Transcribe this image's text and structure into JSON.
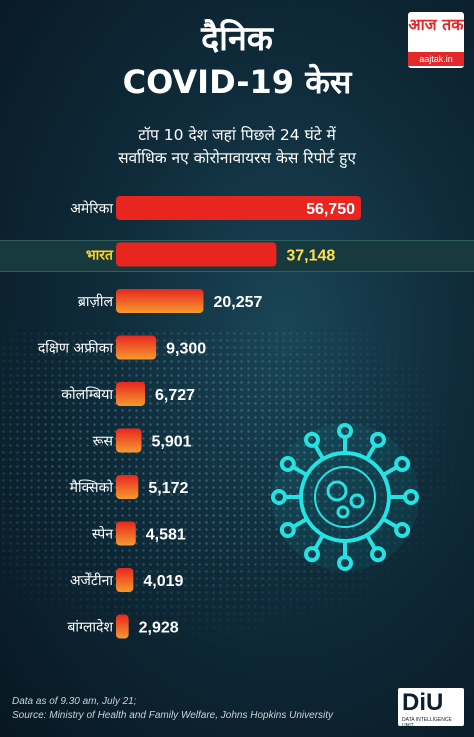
{
  "header": {
    "title_line1": "दैनिक",
    "title_line2": "COVID-19  केस",
    "subtitle_line1": "टॉप 10 देश जहां पिछले 24 घंटे में",
    "subtitle_line2": "सर्वाधिक नए कोरोनावायरस केस रिपोर्ट हुए"
  },
  "logo": {
    "mark": "आज तक",
    "site": "aajtak.in"
  },
  "chart_data": {
    "type": "bar",
    "orientation": "horizontal",
    "categories": [
      "अमेरिका",
      "भारत",
      "ब्राज़ील",
      "दक्षिण अफ्रीका",
      "कोलम्बिया",
      "रूस",
      "मैक्सिको",
      "स्पेन",
      "अर्जेंटीना",
      "बांग्लादेश"
    ],
    "values": [
      56750,
      37148,
      20257,
      9300,
      6727,
      5901,
      5172,
      4581,
      4019,
      2928
    ],
    "value_labels": [
      "56,750",
      "37,148",
      "20,257",
      "9,300",
      "6,727",
      "5,901",
      "5,172",
      "4,581",
      "4,019",
      "2,928"
    ],
    "highlight_index": 1,
    "colors": {
      "bar_top": "#e8261f",
      "bar_gradient_start": "#e8261f",
      "bar_gradient_end": "#f59a2e",
      "highlight_label": "#ffd21f",
      "highlight_value": "#ffe14a",
      "label": "#ffffff"
    },
    "grid": false,
    "legend": "none"
  },
  "footer": {
    "note": "Data as of 9.30 am, July 21;",
    "source": "Source: Ministry of Health and Family Welfare, Johns Hopkins University"
  },
  "diu_logo": {
    "mark": "DiU",
    "tagline": "DATA INTELLIGENCE UNIT"
  }
}
